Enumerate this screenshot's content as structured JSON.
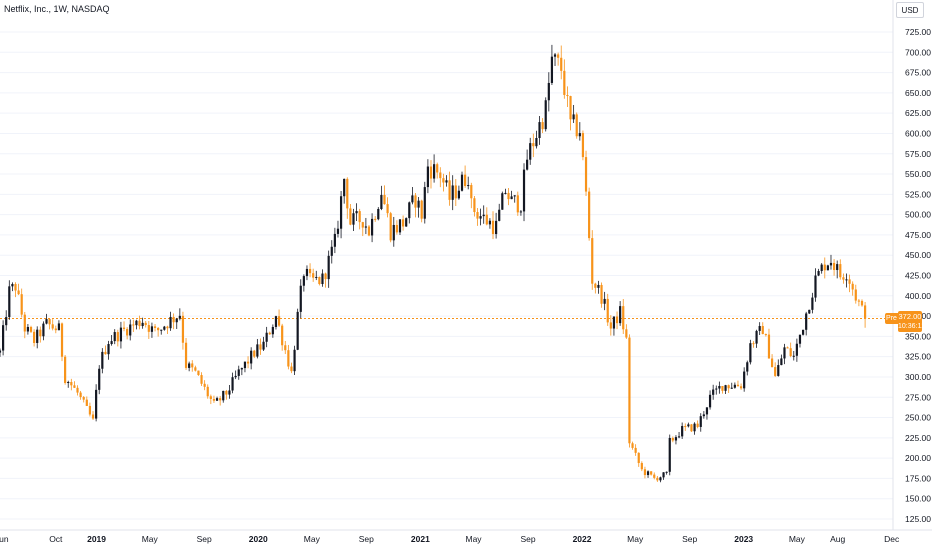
{
  "header": {
    "title": "Netflix, Inc., 1W, NASDAQ",
    "currency": "USD"
  },
  "price_tag": {
    "label": "Pre",
    "value": "372.00",
    "time": "10:36:12"
  },
  "colors": {
    "up": "#131722",
    "down": "#f7931a",
    "grid": "#f0f3fa",
    "axis": "#e0e3eb",
    "last_price_line": "#f7931a"
  },
  "chart_data": {
    "type": "candlestick",
    "title": "Netflix, Inc., 1W, NASDAQ",
    "ylim": [
      115,
      735
    ],
    "y_ticks": [
      125,
      150,
      175,
      200,
      225,
      250,
      275,
      300,
      325,
      350,
      375,
      400,
      425,
      450,
      475,
      500,
      525,
      550,
      575,
      600,
      625,
      650,
      675,
      700,
      725
    ],
    "y_tick_labels": [
      "125.00",
      "150.00",
      "175.00",
      "200.00",
      "225.00",
      "250.00",
      "275.00",
      "300.00",
      "325.00",
      "350.00",
      "375.00",
      "400.00",
      "425.00",
      "450.00",
      "475.00",
      "500.00",
      "525.00",
      "550.00",
      "575.00",
      "600.00",
      "625.00",
      "650.00",
      "675.00",
      "700.00",
      "725.00"
    ],
    "x_range": [
      "2018-05-28",
      "2023-12-04"
    ],
    "x_ticks": [
      {
        "date": "2018-06-01",
        "label": "Jun"
      },
      {
        "date": "2018-10-01",
        "label": "Oct"
      },
      {
        "date": "2019-01-01",
        "label": "2019"
      },
      {
        "date": "2019-05-01",
        "label": "May"
      },
      {
        "date": "2019-09-01",
        "label": "Sep"
      },
      {
        "date": "2020-01-01",
        "label": "2020"
      },
      {
        "date": "2020-05-01",
        "label": "May"
      },
      {
        "date": "2020-09-01",
        "label": "Sep"
      },
      {
        "date": "2021-01-01",
        "label": "2021"
      },
      {
        "date": "2021-05-01",
        "label": "May"
      },
      {
        "date": "2021-09-01",
        "label": "Sep"
      },
      {
        "date": "2022-01-01",
        "label": "2022"
      },
      {
        "date": "2022-05-01",
        "label": "May"
      },
      {
        "date": "2022-09-01",
        "label": "Sep"
      },
      {
        "date": "2023-01-01",
        "label": "2023"
      },
      {
        "date": "2023-05-01",
        "label": "May"
      },
      {
        "date": "2023-08-01",
        "label": "Aug"
      },
      {
        "date": "2023-12-01",
        "label": "Dec"
      }
    ],
    "last_price": 372.0,
    "anchors": [
      [
        "2018-05-28",
        330
      ],
      [
        "2018-06-18",
        405
      ],
      [
        "2018-07-02",
        412
      ],
      [
        "2018-07-23",
        360
      ],
      [
        "2018-08-13",
        345
      ],
      [
        "2018-09-10",
        365
      ],
      [
        "2018-10-08",
        358
      ],
      [
        "2018-10-22",
        300
      ],
      [
        "2018-11-19",
        280
      ],
      [
        "2018-12-24",
        245
      ],
      [
        "2019-01-07",
        315
      ],
      [
        "2019-01-28",
        345
      ],
      [
        "2019-03-11",
        360
      ],
      [
        "2019-04-15",
        370
      ],
      [
        "2019-05-13",
        355
      ],
      [
        "2019-06-17",
        370
      ],
      [
        "2019-07-08",
        378
      ],
      [
        "2019-07-22",
        315
      ],
      [
        "2019-08-12",
        305
      ],
      [
        "2019-09-23",
        265
      ],
      [
        "2019-10-21",
        280
      ],
      [
        "2019-11-18",
        305
      ],
      [
        "2019-12-23",
        330
      ],
      [
        "2020-01-13",
        340
      ],
      [
        "2020-02-10",
        375
      ],
      [
        "2020-03-16",
        305
      ],
      [
        "2020-03-30",
        375
      ],
      [
        "2020-04-13",
        430
      ],
      [
        "2020-04-27",
        418
      ],
      [
        "2020-05-25",
        420
      ],
      [
        "2020-06-22",
        465
      ],
      [
        "2020-07-13",
        545
      ],
      [
        "2020-07-27",
        490
      ],
      [
        "2020-08-24",
        495
      ],
      [
        "2020-09-07",
        480
      ],
      [
        "2020-10-05",
        530
      ],
      [
        "2020-10-26",
        480
      ],
      [
        "2020-11-23",
        490
      ],
      [
        "2020-12-21",
        520
      ],
      [
        "2021-01-04",
        500
      ],
      [
        "2021-01-18",
        560
      ],
      [
        "2021-02-15",
        550
      ],
      [
        "2021-03-08",
        520
      ],
      [
        "2021-04-19",
        550
      ],
      [
        "2021-04-26",
        510
      ],
      [
        "2021-05-24",
        495
      ],
      [
        "2021-06-21",
        485
      ],
      [
        "2021-07-12",
        530
      ],
      [
        "2021-07-26",
        515
      ],
      [
        "2021-08-16",
        515
      ],
      [
        "2021-08-30",
        570
      ],
      [
        "2021-09-20",
        600
      ],
      [
        "2021-10-11",
        630
      ],
      [
        "2021-10-25",
        690
      ],
      [
        "2021-11-15",
        680
      ],
      [
        "2021-12-06",
        610
      ],
      [
        "2021-12-27",
        605
      ],
      [
        "2022-01-10",
        525
      ],
      [
        "2022-01-24",
        420
      ],
      [
        "2022-02-14",
        400
      ],
      [
        "2022-03-07",
        360
      ],
      [
        "2022-03-28",
        380
      ],
      [
        "2022-04-11",
        345
      ],
      [
        "2022-04-18",
        220
      ],
      [
        "2022-05-16",
        185
      ],
      [
        "2022-06-13",
        175
      ],
      [
        "2022-07-11",
        180
      ],
      [
        "2022-07-18",
        220
      ],
      [
        "2022-08-15",
        235
      ],
      [
        "2022-09-19",
        240
      ],
      [
        "2022-10-17",
        275
      ],
      [
        "2022-11-14",
        290
      ],
      [
        "2022-12-26",
        290
      ],
      [
        "2023-01-16",
        340
      ],
      [
        "2023-02-13",
        360
      ],
      [
        "2023-03-13",
        300
      ],
      [
        "2023-04-03",
        335
      ],
      [
        "2023-04-24",
        325
      ],
      [
        "2023-05-15",
        365
      ],
      [
        "2023-06-12",
        420
      ],
      [
        "2023-07-03",
        440
      ],
      [
        "2023-07-17",
        445
      ],
      [
        "2023-08-07",
        425
      ],
      [
        "2023-08-21",
        430
      ],
      [
        "2023-09-11",
        400
      ],
      [
        "2023-10-02",
        372
      ]
    ]
  }
}
